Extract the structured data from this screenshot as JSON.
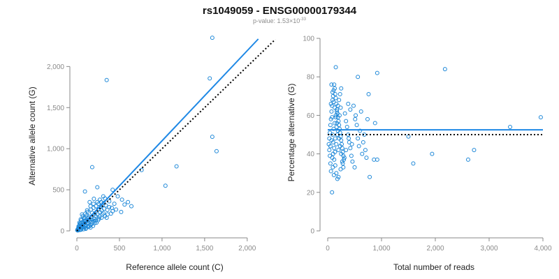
{
  "header": {
    "title": "rs1049059 - ENSG00000179344",
    "pvalue_prefix": "p-value: 1.53×10",
    "pvalue_exponent": "-33"
  },
  "colors": {
    "points": "#1e88d8",
    "fit_line": "#1e88e5",
    "reference_line": "#000000",
    "axis": "#888888",
    "text": "#222222"
  },
  "chart_data": [
    {
      "type": "scatter",
      "title": "",
      "xlabel": "Reference allele count (C)",
      "ylabel": "Alternative allele count (G)",
      "xlim": [
        0,
        2100
      ],
      "ylim": [
        0,
        2300
      ],
      "xticks": [
        0,
        500,
        1000,
        1500,
        2000
      ],
      "xtick_labels": [
        "0",
        "500",
        "1,000",
        "1,500",
        "2,000"
      ],
      "yticks": [
        0,
        500,
        1000,
        1500,
        2000
      ],
      "ytick_labels": [
        "0",
        "500",
        "1,000",
        "1,500",
        "2,000"
      ],
      "grid": false,
      "legend": "none",
      "fit_line": {
        "x": [
          0,
          2130
        ],
        "y": [
          0,
          2335
        ]
      },
      "reference_line": {
        "x": [
          0,
          2330
        ],
        "y": [
          0,
          2330
        ]
      },
      "points": [
        [
          1590,
          2350
        ],
        [
          350,
          1835
        ],
        [
          1560,
          1855
        ],
        [
          1590,
          1145
        ],
        [
          1640,
          970
        ],
        [
          180,
          775
        ],
        [
          760,
          740
        ],
        [
          1170,
          785
        ],
        [
          1040,
          550
        ],
        [
          95,
          480
        ],
        [
          240,
          530
        ],
        [
          420,
          500
        ],
        [
          330,
          395
        ],
        [
          380,
          360
        ],
        [
          530,
          380
        ],
        [
          560,
          320
        ],
        [
          520,
          230
        ],
        [
          410,
          280
        ],
        [
          310,
          420
        ],
        [
          200,
          390
        ],
        [
          150,
          350
        ],
        [
          280,
          300
        ],
        [
          250,
          260
        ],
        [
          120,
          250
        ],
        [
          60,
          200
        ],
        [
          180,
          220
        ],
        [
          300,
          200
        ],
        [
          220,
          180
        ],
        [
          90,
          160
        ],
        [
          150,
          140
        ],
        [
          350,
          160
        ],
        [
          400,
          210
        ],
        [
          130,
          100
        ],
        [
          70,
          110
        ],
        [
          200,
          120
        ],
        [
          260,
          150
        ],
        [
          40,
          80
        ],
        [
          100,
          60
        ],
        [
          160,
          70
        ],
        [
          60,
          40
        ],
        [
          30,
          30
        ],
        [
          80,
          20
        ],
        [
          20,
          10
        ],
        [
          10,
          5
        ],
        [
          50,
          15
        ],
        [
          110,
          35
        ],
        [
          140,
          90
        ],
        [
          190,
          60
        ],
        [
          230,
          100
        ],
        [
          270,
          230
        ],
        [
          320,
          270
        ],
        [
          45,
          55
        ],
        [
          25,
          45
        ],
        [
          15,
          20
        ],
        [
          5,
          8
        ],
        [
          35,
          12
        ],
        [
          75,
          70
        ],
        [
          95,
          95
        ],
        [
          125,
          130
        ],
        [
          170,
          170
        ],
        [
          210,
          210
        ],
        [
          240,
          200
        ],
        [
          290,
          250
        ],
        [
          340,
          310
        ],
        [
          55,
          130
        ],
        [
          85,
          150
        ],
        [
          115,
          190
        ],
        [
          140,
          175
        ],
        [
          165,
          260
        ],
        [
          195,
          280
        ],
        [
          225,
          300
        ],
        [
          255,
          330
        ],
        [
          285,
          350
        ],
        [
          315,
          340
        ],
        [
          205,
          150
        ],
        [
          175,
          110
        ],
        [
          145,
          55
        ],
        [
          105,
          25
        ],
        [
          65,
          60
        ],
        [
          38,
          90
        ],
        [
          28,
          65
        ],
        [
          18,
          35
        ],
        [
          12,
          22
        ],
        [
          8,
          15
        ],
        [
          42,
          18
        ],
        [
          88,
          40
        ],
        [
          132,
          48
        ],
        [
          178,
          85
        ],
        [
          222,
          125
        ],
        [
          268,
          175
        ],
        [
          312,
          215
        ],
        [
          358,
          255
        ],
        [
          480,
          420
        ],
        [
          440,
          330
        ],
        [
          460,
          260
        ],
        [
          600,
          350
        ],
        [
          640,
          300
        ],
        [
          380,
          290
        ],
        [
          420,
          240
        ],
        [
          360,
          200
        ],
        [
          330,
          180
        ],
        [
          290,
          160
        ],
        [
          250,
          130
        ],
        [
          210,
          95
        ],
        [
          160,
          40
        ],
        [
          70,
          95
        ],
        [
          100,
          130
        ],
        [
          130,
          155
        ],
        [
          60,
          75
        ],
        [
          50,
          100
        ],
        [
          90,
          120
        ],
        [
          120,
          85
        ],
        [
          150,
          115
        ],
        [
          180,
          140
        ],
        [
          20,
          55
        ],
        [
          30,
          100
        ],
        [
          45,
          140
        ],
        [
          70,
          180
        ],
        [
          100,
          210
        ],
        [
          125,
          230
        ],
        [
          240,
          350
        ],
        [
          270,
          380
        ],
        [
          300,
          310
        ],
        [
          195,
          330
        ],
        [
          160,
          300
        ]
      ]
    },
    {
      "type": "scatter",
      "title": "",
      "xlabel": "Total number of reads",
      "ylabel": "Percentage alternative (G)",
      "xlim": [
        0,
        4000
      ],
      "ylim": [
        0,
        100
      ],
      "xticks": [
        0,
        1000,
        2000,
        3000,
        4000
      ],
      "xtick_labels": [
        "0",
        "1,000",
        "2,000",
        "3,000",
        "4,000"
      ],
      "yticks": [
        0,
        20,
        40,
        60,
        80,
        100
      ],
      "ytick_labels": [
        "0",
        "20",
        "40",
        "60",
        "80",
        "100"
      ],
      "grid": false,
      "legend": "none",
      "fit_line": {
        "x": [
          0,
          4000
        ],
        "y": [
          52.5,
          52.5
        ]
      },
      "reference_line": {
        "x": [
          0,
          4000
        ],
        "y": [
          50,
          50
        ]
      },
      "points": [
        [
          150,
          85
        ],
        [
          2180,
          84
        ],
        [
          920,
          82
        ],
        [
          560,
          80
        ],
        [
          760,
          71
        ],
        [
          3960,
          59
        ],
        [
          3390,
          54
        ],
        [
          1500,
          49
        ],
        [
          1940,
          40
        ],
        [
          2720,
          42
        ],
        [
          2610,
          37
        ],
        [
          1590,
          35
        ],
        [
          860,
          37
        ],
        [
          920,
          37
        ],
        [
          780,
          28
        ],
        [
          880,
          56
        ],
        [
          640,
          40
        ],
        [
          600,
          52
        ],
        [
          480,
          65
        ],
        [
          420,
          63
        ],
        [
          380,
          66
        ],
        [
          510,
          58
        ],
        [
          390,
          48
        ],
        [
          450,
          45
        ],
        [
          340,
          42
        ],
        [
          310,
          38
        ],
        [
          280,
          35
        ],
        [
          240,
          32
        ],
        [
          200,
          28
        ],
        [
          80,
          20
        ],
        [
          60,
          31
        ],
        [
          50,
          35
        ],
        [
          40,
          39
        ],
        [
          30,
          42
        ],
        [
          20,
          45
        ],
        [
          30,
          48
        ],
        [
          40,
          51
        ],
        [
          50,
          55
        ],
        [
          60,
          58
        ],
        [
          70,
          62
        ],
        [
          80,
          65
        ],
        [
          90,
          68
        ],
        [
          100,
          70
        ],
        [
          110,
          73
        ],
        [
          120,
          76
        ],
        [
          130,
          74
        ],
        [
          140,
          71
        ],
        [
          150,
          69
        ],
        [
          160,
          66
        ],
        [
          170,
          63
        ],
        [
          180,
          61
        ],
        [
          190,
          59
        ],
        [
          200,
          57
        ],
        [
          210,
          55
        ],
        [
          220,
          53
        ],
        [
          230,
          51
        ],
        [
          240,
          49
        ],
        [
          250,
          47
        ],
        [
          260,
          45
        ],
        [
          270,
          43
        ],
        [
          280,
          41
        ],
        [
          290,
          39
        ],
        [
          300,
          37
        ],
        [
          70,
          76
        ],
        [
          90,
          72
        ],
        [
          110,
          67
        ],
        [
          130,
          64
        ],
        [
          150,
          60
        ],
        [
          170,
          56
        ],
        [
          190,
          52
        ],
        [
          210,
          48
        ],
        [
          230,
          44
        ],
        [
          250,
          40
        ],
        [
          270,
          36
        ],
        [
          290,
          33
        ],
        [
          100,
          40
        ],
        [
          120,
          37
        ],
        [
          140,
          34
        ],
        [
          160,
          30
        ],
        [
          180,
          27
        ],
        [
          50,
          44
        ],
        [
          70,
          47
        ],
        [
          90,
          50
        ],
        [
          110,
          53
        ],
        [
          130,
          56
        ],
        [
          150,
          59
        ],
        [
          170,
          62
        ],
        [
          190,
          65
        ],
        [
          210,
          68
        ],
        [
          230,
          71
        ],
        [
          250,
          74
        ],
        [
          320,
          61
        ],
        [
          340,
          57
        ],
        [
          360,
          54
        ],
        [
          380,
          50
        ],
        [
          400,
          46
        ],
        [
          420,
          43
        ],
        [
          440,
          39
        ],
        [
          460,
          36
        ],
        [
          500,
          33
        ],
        [
          520,
          60
        ],
        [
          540,
          55
        ],
        [
          560,
          48
        ],
        [
          580,
          44
        ],
        [
          620,
          62
        ],
        [
          660,
          46
        ],
        [
          700,
          42
        ],
        [
          720,
          38
        ],
        [
          680,
          50
        ],
        [
          740,
          58
        ],
        [
          60,
          66
        ],
        [
          80,
          59
        ],
        [
          100,
          46
        ],
        [
          120,
          43
        ],
        [
          140,
          48
        ],
        [
          160,
          45
        ],
        [
          180,
          50
        ],
        [
          200,
          42
        ],
        [
          220,
          60
        ],
        [
          240,
          64
        ],
        [
          85,
          38
        ],
        [
          95,
          33
        ],
        [
          115,
          29
        ],
        [
          135,
          41
        ],
        [
          165,
          54
        ]
      ]
    }
  ]
}
